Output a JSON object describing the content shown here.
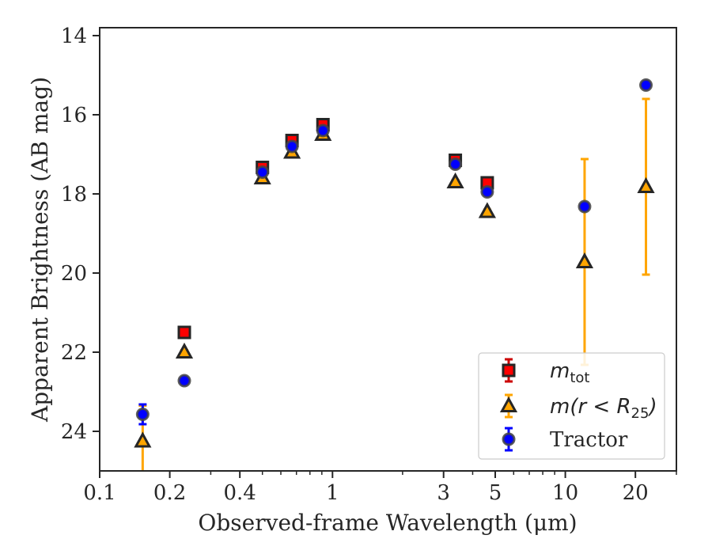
{
  "chart_data": {
    "type": "scatter",
    "xlabel": "Observed-frame Wavelength (μm)",
    "ylabel": "Apparent Brightness (AB mag)",
    "x_scale": "log",
    "xlim": [
      0.1,
      30
    ],
    "ylim": [
      25.0,
      13.8
    ],
    "y_inverted": true,
    "x_ticks": [
      {
        "value": 0.1,
        "label": "0.1"
      },
      {
        "value": 0.2,
        "label": "0.2"
      },
      {
        "value": 0.4,
        "label": "0.4"
      },
      {
        "value": 1,
        "label": "1"
      },
      {
        "value": 3,
        "label": "3"
      },
      {
        "value": 5,
        "label": "5"
      },
      {
        "value": 10,
        "label": "10"
      },
      {
        "value": 20,
        "label": "20"
      }
    ],
    "y_ticks": [
      {
        "value": 14,
        "label": "14"
      },
      {
        "value": 16,
        "label": "16"
      },
      {
        "value": 18,
        "label": "18"
      },
      {
        "value": 20,
        "label": "20"
      },
      {
        "value": 22,
        "label": "22"
      },
      {
        "value": 24,
        "label": "24"
      }
    ],
    "grid": false,
    "legend_position": "lower-right",
    "series": [
      {
        "name": "m_tot",
        "marker": "square",
        "fill": "#ff0000",
        "edge": "#262626",
        "errcolor": "#cc0000",
        "points": [
          {
            "x": 0.231,
            "y": 21.5,
            "err": 0.05
          },
          {
            "x": 0.5,
            "y": 17.33,
            "err": 0.05
          },
          {
            "x": 0.67,
            "y": 16.65,
            "err": 0.05
          },
          {
            "x": 0.91,
            "y": 16.25,
            "err": 0.05
          },
          {
            "x": 3.37,
            "y": 17.15,
            "err": 0.05
          },
          {
            "x": 4.62,
            "y": 17.72,
            "err": 0.05
          }
        ]
      },
      {
        "name": "m(r < R_25)",
        "marker": "triangle",
        "fill": "#ffa500",
        "edge": "#262626",
        "errcolor": "#ffa500",
        "points": [
          {
            "x": 0.153,
            "y": 24.25,
            "err_lo": 3.25,
            "err_hi": 0.9
          },
          {
            "x": 0.231,
            "y": 22.0,
            "err": 0.05
          },
          {
            "x": 0.5,
            "y": 17.6,
            "err": 0.05
          },
          {
            "x": 0.67,
            "y": 16.95,
            "err": 0.05
          },
          {
            "x": 0.91,
            "y": 16.5,
            "err": 0.05
          },
          {
            "x": 3.37,
            "y": 17.7,
            "err": 0.05
          },
          {
            "x": 4.62,
            "y": 18.45,
            "err": 0.05
          },
          {
            "x": 12.1,
            "y": 19.72,
            "err": 2.6
          },
          {
            "x": 22.2,
            "y": 17.82,
            "err": 2.22
          }
        ]
      },
      {
        "name": "Tractor",
        "marker": "circle",
        "fill": "#0000ff",
        "edge": "#262626",
        "errcolor": "#0000ff",
        "points": [
          {
            "x": 0.153,
            "y": 23.57,
            "err": 0.25
          },
          {
            "x": 0.231,
            "y": 22.72,
            "err": 0.05
          },
          {
            "x": 0.5,
            "y": 17.45,
            "err": 0.05
          },
          {
            "x": 0.67,
            "y": 16.8,
            "err": 0.05
          },
          {
            "x": 0.91,
            "y": 16.4,
            "err": 0.05
          },
          {
            "x": 3.37,
            "y": 17.25,
            "err": 0.05
          },
          {
            "x": 4.62,
            "y": 17.95,
            "err": 0.05
          },
          {
            "x": 12.1,
            "y": 18.32,
            "err": 0.05
          },
          {
            "x": 22.2,
            "y": 15.25,
            "err": 0.05
          }
        ]
      }
    ]
  },
  "legend": {
    "items": [
      {
        "main": "m",
        "sub": "tot"
      },
      {
        "main": "m(r < R",
        "sub": "25",
        "suffix": ")"
      },
      {
        "main": "Tractor"
      }
    ]
  }
}
